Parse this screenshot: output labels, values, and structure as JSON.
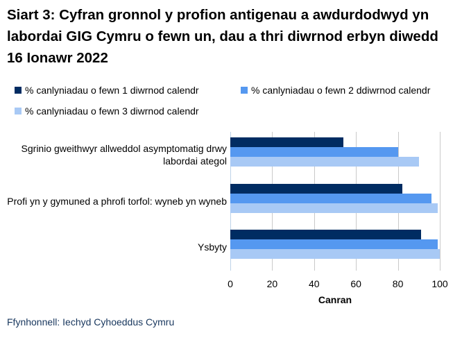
{
  "title": "Siart 3: Cyfran gronnol y profion antigenau a awdurdodwyd yn labordai GIG Cymru o fewn un, dau a thri diwrnod erbyn diwedd 16 Ionawr 2022",
  "source": "Ffynhonnell: Iechyd Cyhoeddus Cymru",
  "colors": {
    "series1": "#002c62",
    "series2": "#5598f0",
    "series3": "#a8c9f5",
    "gridline": "#c9c9c9",
    "zero_axis": "#bdd3e8",
    "source_text": "#17365d",
    "title_text": "#000000"
  },
  "chart_data": {
    "type": "bar",
    "orientation": "horizontal",
    "title": "Siart 3: Cyfran gronnol y profion antigenau a awdurdodwyd yn labordai GIG Cymru o fewn un, dau a thri diwrnod erbyn diwedd 16 Ionawr 2022",
    "categories": [
      "Sgrinio gweithwyr allweddol asymptomatig drwy labordai ategol",
      "Profi yn y gymuned a phrofi torfol: wyneb yn wyneb",
      "Ysbyty"
    ],
    "series": [
      {
        "name": "% canlyniadau o fewn 1 diwrnod calendr",
        "color": "#002c62",
        "values": [
          54,
          82,
          91
        ]
      },
      {
        "name": "% canlyniadau o fewn 2 ddiwrnod calendr",
        "color": "#5598f0",
        "values": [
          80,
          96,
          99
        ]
      },
      {
        "name": "% canlyniadau o fewn 3 diwrnod calendr",
        "color": "#a8c9f5",
        "values": [
          90,
          99,
          100
        ]
      }
    ],
    "xlabel": "Canran",
    "ylabel": "",
    "xlim": [
      0,
      100
    ],
    "xticks": [
      0,
      20,
      40,
      60,
      80,
      100
    ],
    "grid": true,
    "legend_position": "top"
  }
}
